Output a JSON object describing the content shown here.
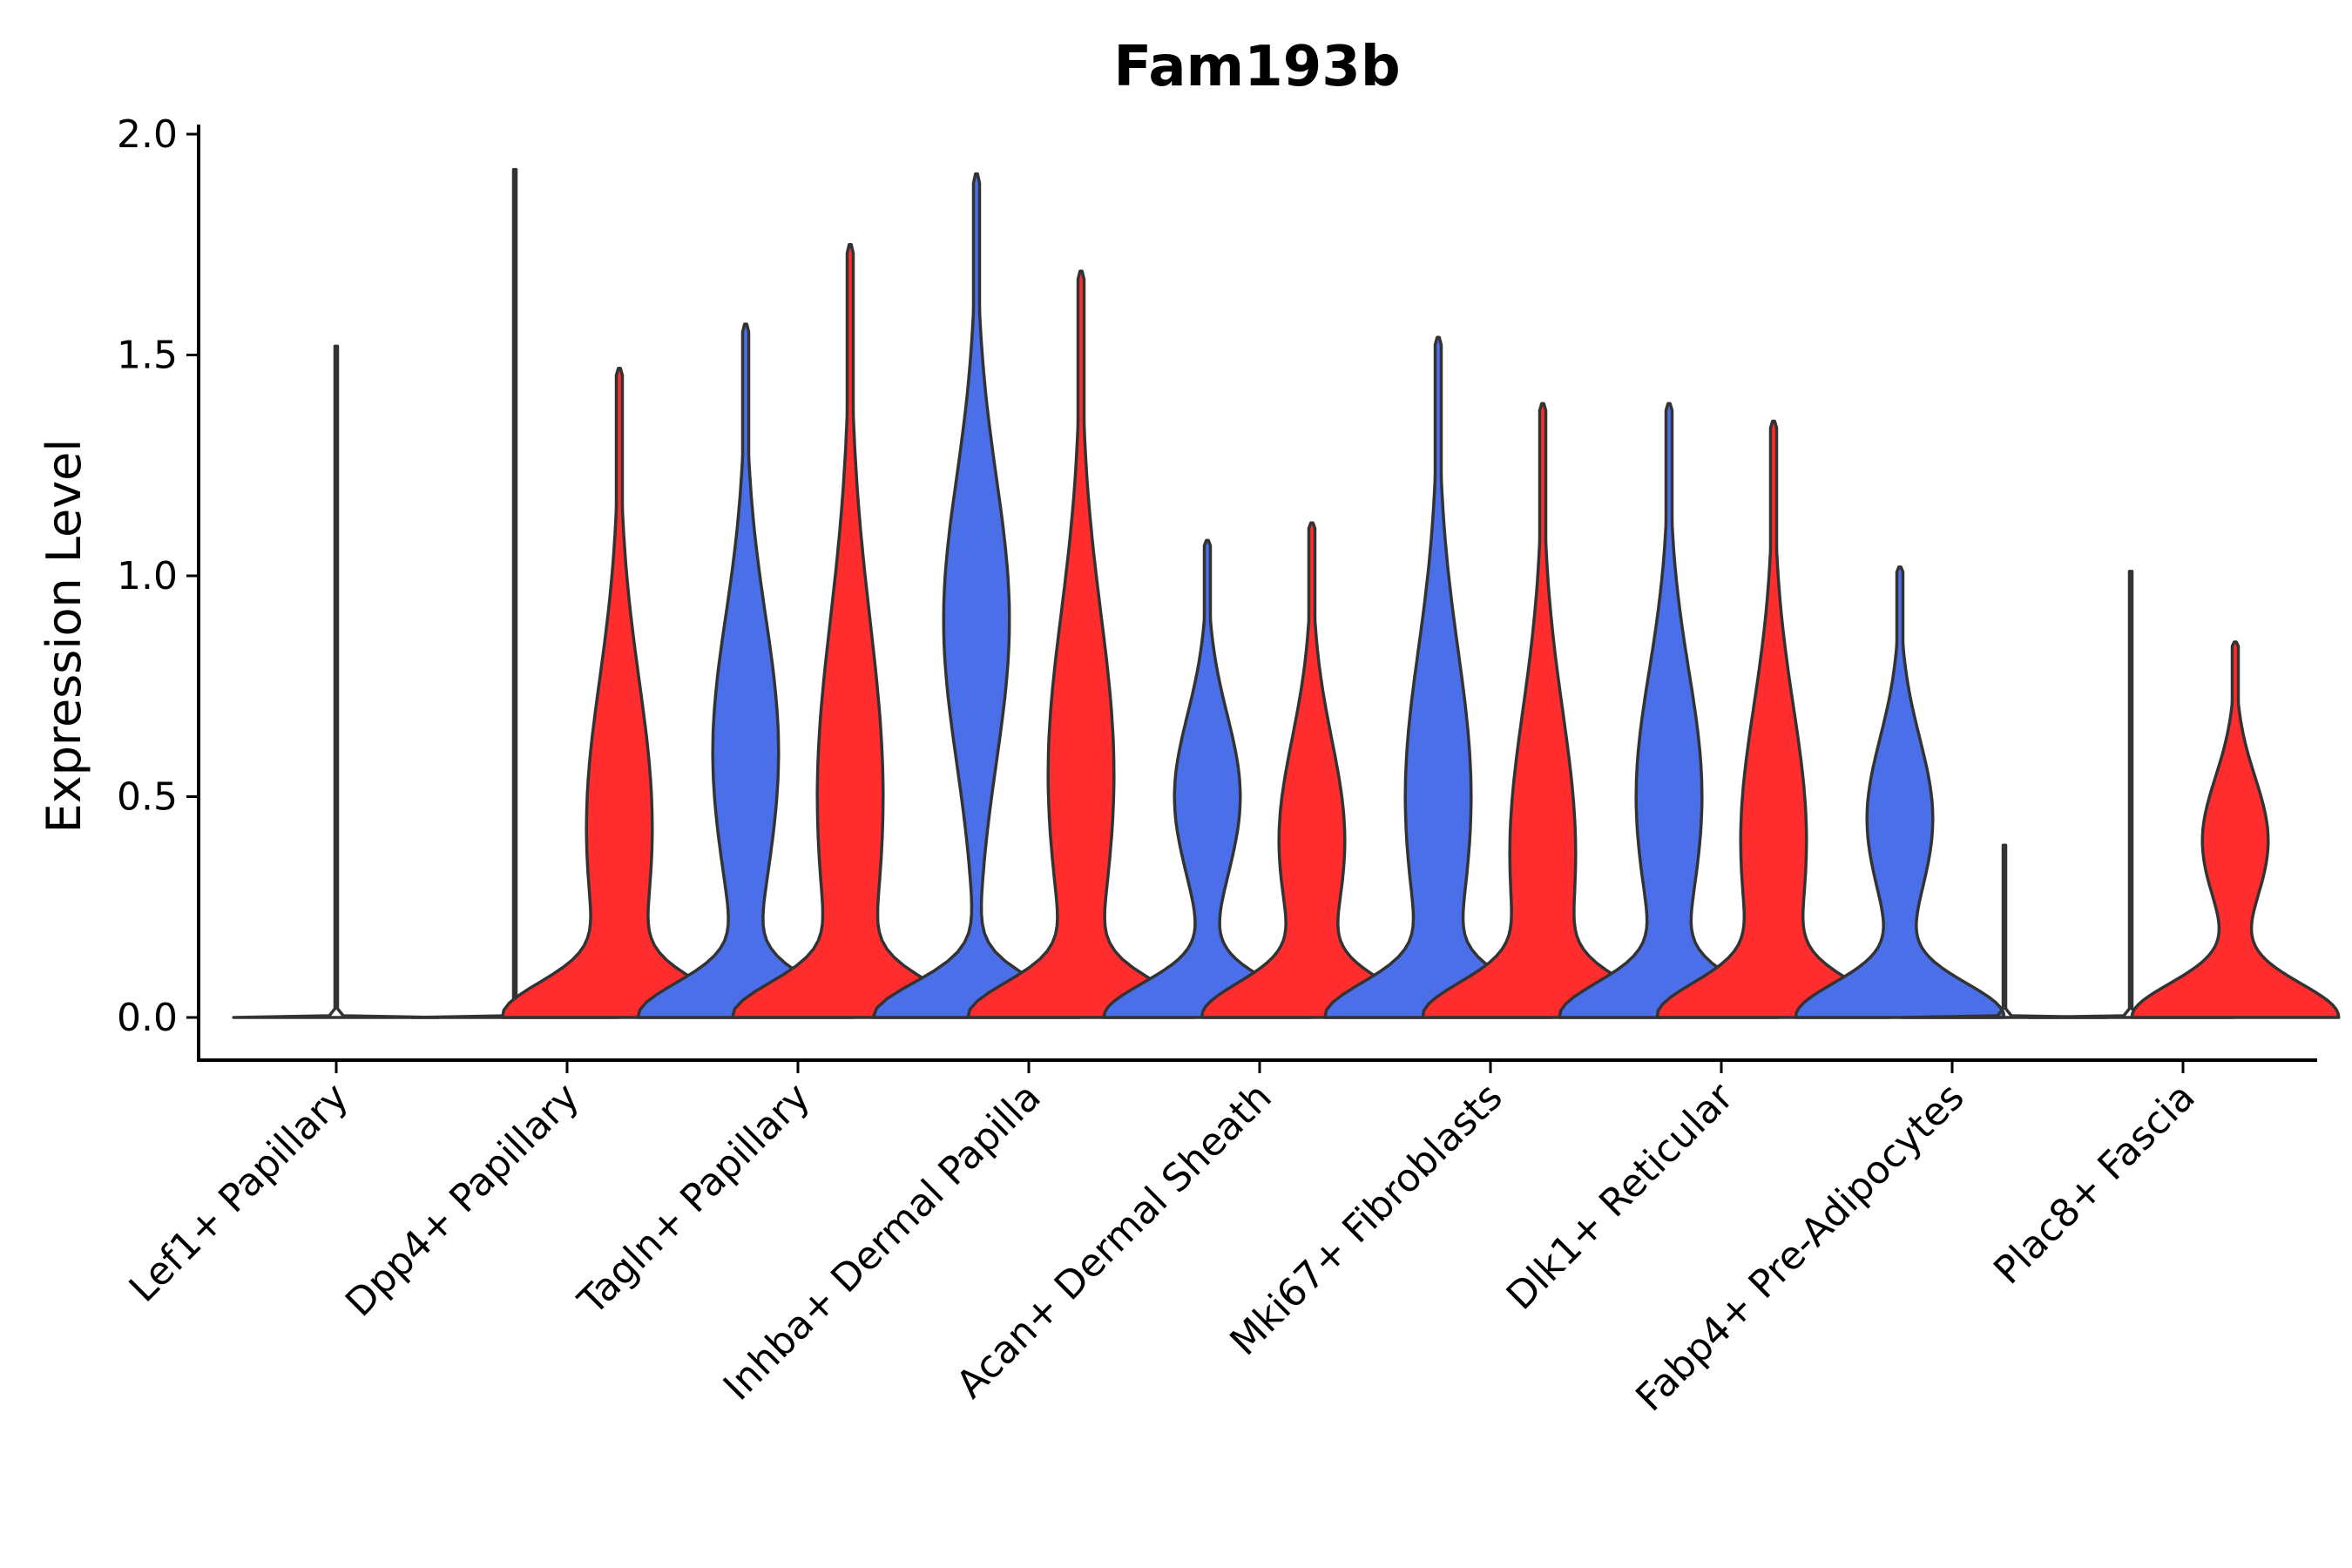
{
  "chart_data": {
    "type": "violin",
    "title": "Fam193b",
    "xlabel": "",
    "ylabel": "Expression Level",
    "ylim": [
      -0.1,
      2.02
    ],
    "yticks": [
      0.0,
      0.5,
      1.0,
      1.5,
      2.0
    ],
    "ytick_labels": [
      "0.0",
      "0.5",
      "1.0",
      "1.5",
      "2.0"
    ],
    "grid": false,
    "legend": "none",
    "categories": [
      "Lef1+ Papillary",
      "Dpp4+ Papillary",
      "Tagln+ Papillary",
      "Inhba+ Dermal Papilla",
      "Acan+ Dermal Sheath",
      "Mki67+ Fibroblasts",
      "Dlk1+ Reticular",
      "Fabp4+ Pre-Adipocytes",
      "Plac8+ Fascia"
    ],
    "series": [
      {
        "name": "left",
        "color": "#4A6FE8",
        "max": [
          1.52,
          1.92,
          1.57,
          1.91,
          1.08,
          1.54,
          1.39,
          1.02,
          1.01
        ],
        "mode": [
          0.0,
          0.0,
          0.6,
          0.9,
          0.5,
          0.5,
          0.5,
          0.45,
          0.0
        ],
        "flat": [
          true,
          true,
          false,
          false,
          false,
          false,
          false,
          false,
          true
        ]
      },
      {
        "name": "right",
        "color": "#FF2D2D",
        "max": [
          null,
          1.47,
          1.75,
          1.69,
          1.12,
          1.39,
          1.35,
          0.39,
          0.85
        ],
        "mode": [
          null,
          0.43,
          0.5,
          0.55,
          0.4,
          0.37,
          0.4,
          0.3,
          0.4
        ],
        "flat": [
          true,
          false,
          false,
          false,
          false,
          false,
          false,
          true,
          false
        ]
      }
    ]
  }
}
